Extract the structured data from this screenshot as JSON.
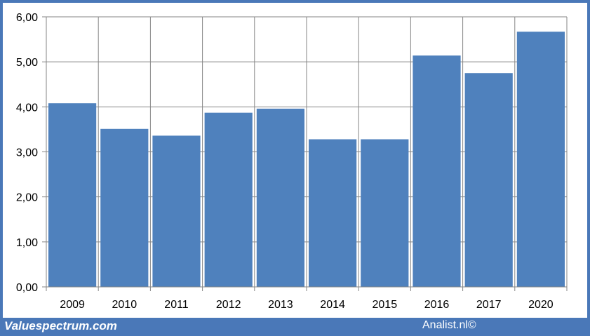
{
  "footer": {
    "left_text": "Valuespectrum.com",
    "right_text": "Analist.nl©"
  },
  "colors": {
    "frame": "#4a78b8",
    "bar": "#4f81bd",
    "grid": "#868686"
  },
  "chart_data": {
    "type": "bar",
    "title": "",
    "xlabel": "",
    "ylabel": "",
    "categories": [
      "2009",
      "2010",
      "2011",
      "2012",
      "2013",
      "2014",
      "2015",
      "2016",
      "2017",
      "2020"
    ],
    "values": [
      4.08,
      3.51,
      3.36,
      3.87,
      3.96,
      3.28,
      3.28,
      5.14,
      4.75,
      5.67
    ],
    "ylim": [
      0,
      6
    ],
    "yticks": [
      "0,00",
      "1,00",
      "2,00",
      "3,00",
      "4,00",
      "5,00",
      "6,00"
    ],
    "grid": true,
    "legend": "none"
  }
}
